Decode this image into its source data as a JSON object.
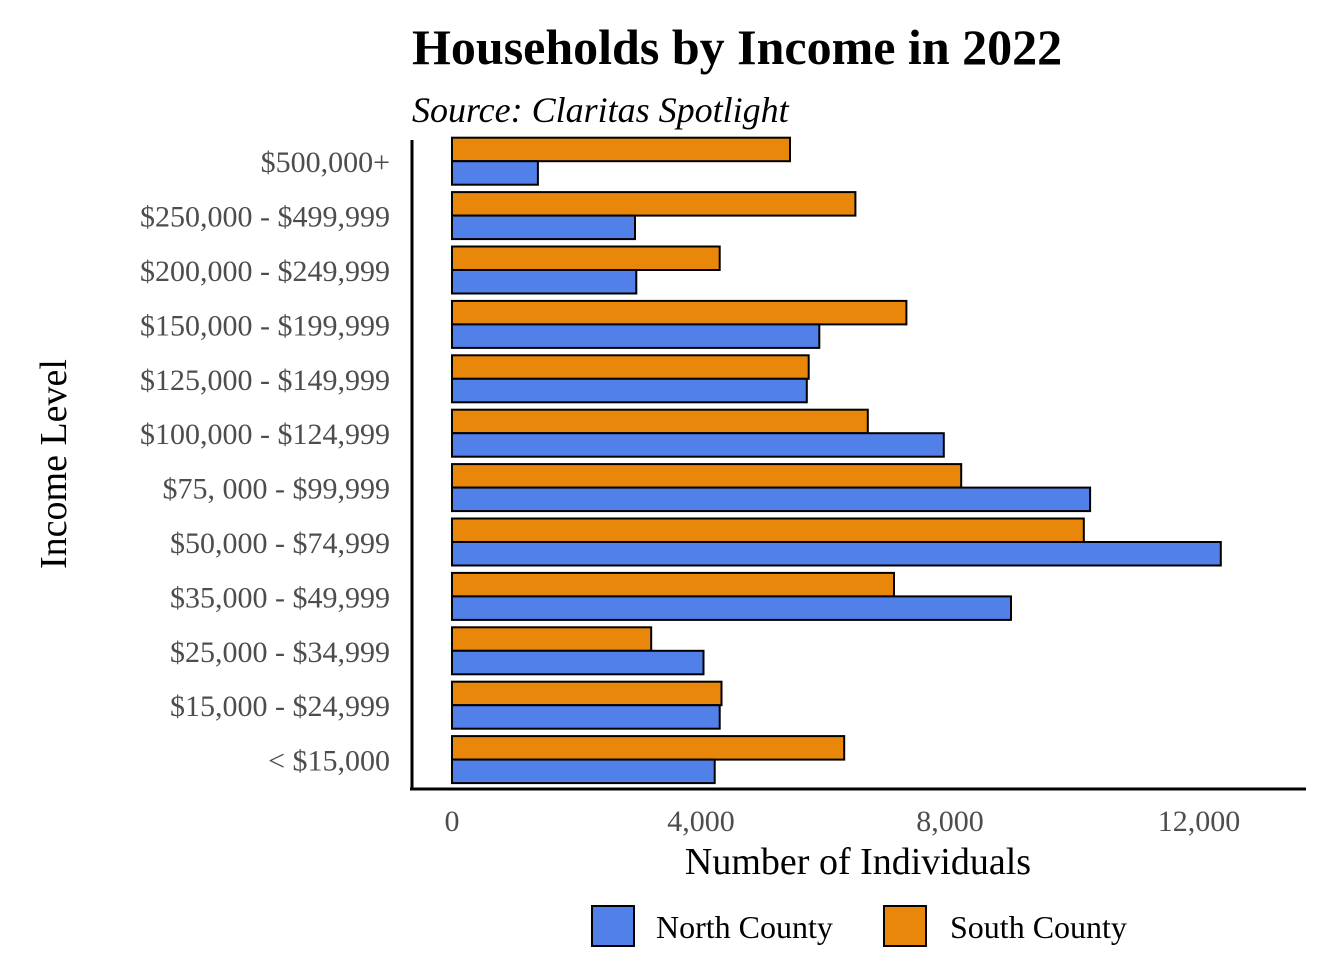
{
  "chart_data": {
    "type": "bar",
    "orientation": "horizontal",
    "title": "Households by  Income in 2022",
    "subtitle": "Source: Claritas Spotlight",
    "xlabel": "Number of Individuals",
    "ylabel": "Income Level",
    "xlim": [
      0,
      13500
    ],
    "xticks": [
      0,
      4000,
      8000,
      12000
    ],
    "xtick_labels": [
      "0",
      "4,000",
      "8,000",
      "12,000"
    ],
    "grid": false,
    "legend_position": "bottom",
    "categories": [
      "$500,000+",
      "$250,000 - $499,999",
      "$200,000 - $249,999",
      "$150,000 - $199,999",
      "$125,000 - $149,999",
      "$100,000 - $124,999",
      "$75, 000 - $99,999",
      "$50,000 - $74,999",
      "$35,000 - $49,999",
      "$25,000 - $34,999",
      "$15,000 - $24,999",
      "< $15,000"
    ],
    "series": [
      {
        "name": "North County",
        "color": "#5080e8",
        "values": [
          1380,
          2940,
          2960,
          5900,
          5700,
          7900,
          10250,
          12350,
          8980,
          4040,
          4300,
          4220
        ]
      },
      {
        "name": "South County",
        "color": "#e8870a",
        "values": [
          5430,
          6480,
          4300,
          7300,
          5730,
          6680,
          8180,
          10150,
          7100,
          3200,
          4330,
          6300
        ]
      }
    ]
  }
}
